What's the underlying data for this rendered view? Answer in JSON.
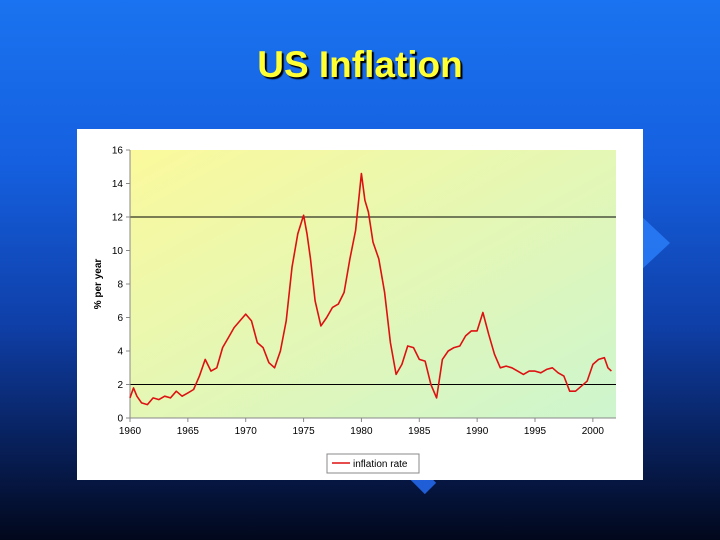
{
  "slide": {
    "title": "US Inflation"
  },
  "colors": {
    "background_top": "#1a73f0",
    "background_bottom": "#02081c",
    "title": "#ffff33",
    "series_line": "#dd1111",
    "plot_fill_top": "#fbf99c",
    "plot_fill_bottom": "#cdf5ce"
  },
  "chart_data": {
    "type": "line",
    "title": "",
    "xlabel": "",
    "ylabel": "% per year",
    "xlim": [
      1960,
      2002
    ],
    "ylim": [
      0,
      16
    ],
    "x_ticks": [
      "1960",
      "1965",
      "1970",
      "1975",
      "1980",
      "1985",
      "1990",
      "1995",
      "2000"
    ],
    "y_ticks": [
      "0",
      "2",
      "4",
      "6",
      "8",
      "10",
      "12",
      "14",
      "16"
    ],
    "gridlines_y": [
      2,
      12
    ],
    "legend": {
      "position": "bottom-center",
      "entries": [
        "inflation rate"
      ]
    },
    "series": [
      {
        "name": "inflation rate",
        "color": "#dd1111",
        "x": [
          1960.0,
          1960.3,
          1960.6,
          1961.0,
          1961.5,
          1962.0,
          1962.5,
          1963.0,
          1963.5,
          1964.0,
          1964.5,
          1965.0,
          1965.5,
          1966.0,
          1966.5,
          1967.0,
          1967.5,
          1968.0,
          1968.5,
          1969.0,
          1969.5,
          1970.0,
          1970.5,
          1971.0,
          1971.5,
          1972.0,
          1972.5,
          1973.0,
          1973.5,
          1974.0,
          1974.5,
          1975.0,
          1975.3,
          1975.6,
          1976.0,
          1976.5,
          1977.0,
          1977.5,
          1978.0,
          1978.5,
          1979.0,
          1979.5,
          1980.0,
          1980.3,
          1980.6,
          1981.0,
          1981.5,
          1982.0,
          1982.5,
          1983.0,
          1983.5,
          1984.0,
          1984.5,
          1985.0,
          1985.5,
          1986.0,
          1986.5,
          1987.0,
          1987.5,
          1988.0,
          1988.5,
          1989.0,
          1989.5,
          1990.0,
          1990.5,
          1991.0,
          1991.5,
          1992.0,
          1992.5,
          1993.0,
          1993.5,
          1994.0,
          1994.5,
          1995.0,
          1995.5,
          1996.0,
          1996.5,
          1997.0,
          1997.5,
          1998.0,
          1998.5,
          1999.0,
          1999.5,
          2000.0,
          2000.5,
          2001.0,
          2001.3,
          2001.6
        ],
        "values": [
          1.2,
          1.8,
          1.3,
          0.9,
          0.8,
          1.2,
          1.1,
          1.3,
          1.2,
          1.6,
          1.3,
          1.5,
          1.7,
          2.5,
          3.5,
          2.8,
          3.0,
          4.2,
          4.8,
          5.4,
          5.8,
          6.2,
          5.8,
          4.5,
          4.2,
          3.3,
          3.0,
          4.0,
          5.8,
          9.0,
          11.0,
          12.1,
          11.0,
          9.5,
          7.0,
          5.5,
          6.0,
          6.6,
          6.8,
          7.5,
          9.5,
          11.2,
          14.6,
          13.0,
          12.3,
          10.5,
          9.5,
          7.5,
          4.5,
          2.6,
          3.2,
          4.3,
          4.2,
          3.5,
          3.4,
          2.0,
          1.2,
          3.5,
          4.0,
          4.2,
          4.3,
          4.9,
          5.2,
          5.2,
          6.3,
          5.0,
          3.8,
          3.0,
          3.1,
          3.0,
          2.8,
          2.6,
          2.8,
          2.8,
          2.7,
          2.9,
          3.0,
          2.7,
          2.5,
          1.6,
          1.6,
          1.9,
          2.2,
          3.2,
          3.5,
          3.6,
          3.0,
          2.8
        ]
      }
    ]
  }
}
